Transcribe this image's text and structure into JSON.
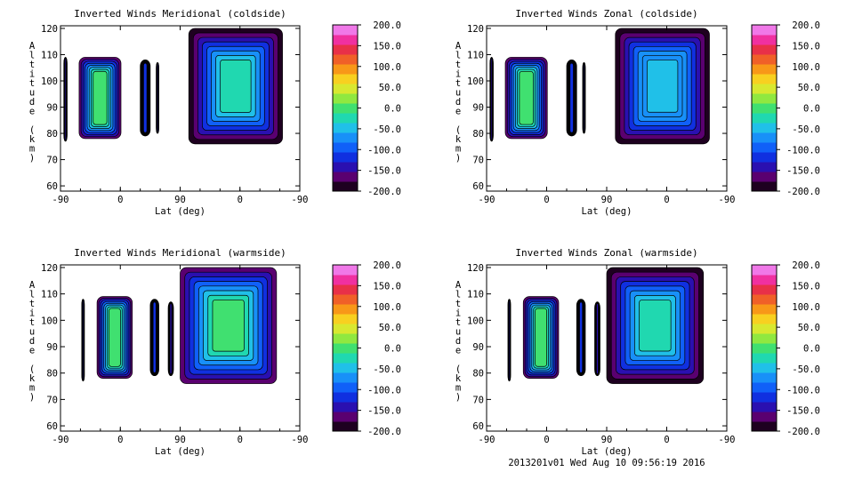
{
  "chart_data": [
    {
      "type": "heatmap",
      "title": "Inverted Winds Meridional (coldside)",
      "xlabel": "Lat (deg)",
      "ylabel": "Altitude (km)",
      "xticks": [
        "-90",
        "0",
        "90",
        "0",
        "-90"
      ],
      "yticks": [
        60,
        70,
        80,
        90,
        100,
        110,
        120
      ],
      "ylim": [
        58,
        121
      ],
      "colorbar": {
        "range": [
          -200,
          200
        ],
        "labels": [
          "200.0",
          "150.0",
          "100.0",
          "50.0",
          "0.0",
          "-50.0",
          "-100.0",
          "-150.0",
          "-200.0"
        ]
      },
      "blocks": [
        {
          "x0": -85,
          "x1": -80,
          "y0": 77,
          "y1": 109,
          "v": -130
        },
        {
          "x0": -62,
          "x1": 1,
          "y0": 78,
          "y1": 109,
          "v": 0
        },
        {
          "x0": 30,
          "x1": 45,
          "y0": 79,
          "y1": 108,
          "v": -120
        },
        {
          "x0": 54,
          "x1": 58,
          "y0": 80,
          "y1": 107,
          "v": -140
        },
        {
          "x0": 103,
          "x1": 244,
          "y0": 76,
          "y1": 120,
          "v": -20
        }
      ]
    },
    {
      "type": "heatmap",
      "title": "Inverted Winds Zonal (coldside)",
      "xlabel": "Lat (deg)",
      "ylabel": "Altitude (km)",
      "xticks": [
        "-90",
        "0",
        "90",
        "0",
        "-90"
      ],
      "yticks": [
        60,
        70,
        80,
        90,
        100,
        110,
        120
      ],
      "ylim": [
        58,
        121
      ],
      "colorbar": {
        "range": [
          -200,
          200
        ],
        "labels": [
          "200.0",
          "150.0",
          "100.0",
          "50.0",
          "0.0",
          "-50.0",
          "-100.0",
          "-150.0",
          "-200.0"
        ]
      },
      "blocks": [
        {
          "x0": -85,
          "x1": -80,
          "y0": 77,
          "y1": 109,
          "v": -130
        },
        {
          "x0": -62,
          "x1": 1,
          "y0": 78,
          "y1": 109,
          "v": 10
        },
        {
          "x0": 30,
          "x1": 45,
          "y0": 79,
          "y1": 108,
          "v": -120
        },
        {
          "x0": 54,
          "x1": 58,
          "y0": 80,
          "y1": 107,
          "v": -140
        },
        {
          "x0": 103,
          "x1": 244,
          "y0": 76,
          "y1": 120,
          "v": -40
        }
      ]
    },
    {
      "type": "heatmap",
      "title": "Inverted Winds Meridional (warmside)",
      "xlabel": "Lat (deg)",
      "ylabel": "Altitude (km)",
      "xticks": [
        "-90",
        "0",
        "90",
        "0",
        "-90"
      ],
      "yticks": [
        60,
        70,
        80,
        90,
        100,
        110,
        120
      ],
      "ylim": [
        58,
        121
      ],
      "colorbar": {
        "range": [
          -200,
          200
        ],
        "labels": [
          "200.0",
          "150.0",
          "100.0",
          "50.0",
          "0.0",
          "-50.0",
          "-100.0",
          "-150.0",
          "-200.0"
        ]
      },
      "blocks": [
        {
          "x0": -58,
          "x1": -54,
          "y0": 77,
          "y1": 108,
          "v": -140
        },
        {
          "x0": -35,
          "x1": 18,
          "y0": 78,
          "y1": 109,
          "v": 10
        },
        {
          "x0": 45,
          "x1": 58,
          "y0": 79,
          "y1": 108,
          "v": -120
        },
        {
          "x0": 72,
          "x1": 80,
          "y0": 79,
          "y1": 107,
          "v": -130
        },
        {
          "x0": 90,
          "x1": 235,
          "y0": 76,
          "y1": 120,
          "v": 0
        }
      ]
    },
    {
      "type": "heatmap",
      "title": "Inverted Winds Zonal (warmside)",
      "xlabel": "Lat (deg)",
      "ylabel": "Altitude (km)",
      "xticks": [
        "-90",
        "0",
        "90",
        "0",
        "-90"
      ],
      "yticks": [
        60,
        70,
        80,
        90,
        100,
        110,
        120
      ],
      "ylim": [
        58,
        121
      ],
      "colorbar": {
        "range": [
          -200,
          200
        ],
        "labels": [
          "200.0",
          "150.0",
          "100.0",
          "50.0",
          "0.0",
          "-50.0",
          "-100.0",
          "-150.0",
          "-200.0"
        ]
      },
      "blocks": [
        {
          "x0": -58,
          "x1": -54,
          "y0": 77,
          "y1": 108,
          "v": -140
        },
        {
          "x0": -35,
          "x1": 18,
          "y0": 78,
          "y1": 109,
          "v": 0
        },
        {
          "x0": 45,
          "x1": 58,
          "y0": 79,
          "y1": 108,
          "v": -120
        },
        {
          "x0": 72,
          "x1": 80,
          "y0": 79,
          "y1": 107,
          "v": -130
        },
        {
          "x0": 90,
          "x1": 235,
          "y0": 76,
          "y1": 120,
          "v": -20
        }
      ]
    }
  ],
  "footer": "2013201v01 Wed Aug 10 09:56:19 2016"
}
